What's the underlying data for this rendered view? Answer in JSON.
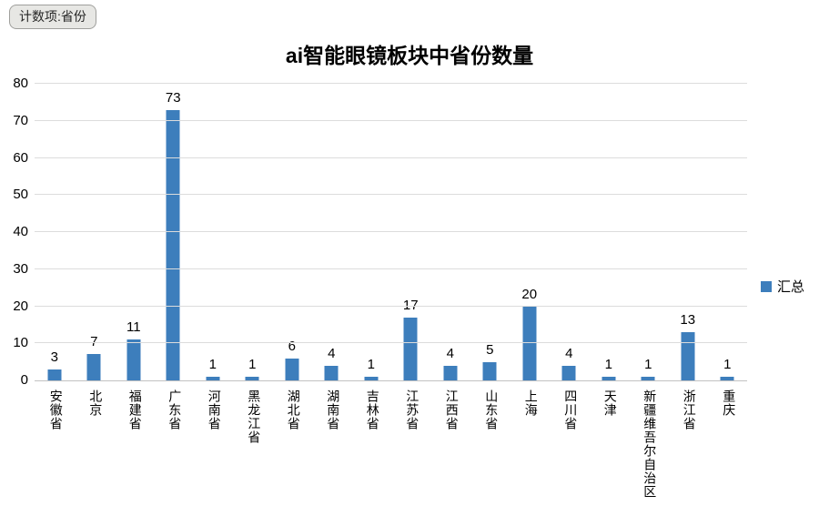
{
  "pivot_button": {
    "label": "计数项:省份"
  },
  "chart": {
    "title": "ai智能眼镜板块中省份数量",
    "legend": {
      "label": "汇总",
      "color": "#3d7ebc"
    }
  },
  "chart_data": {
    "type": "bar",
    "title": "ai智能眼镜板块中省份数量",
    "categories": [
      "安徽省",
      "北京",
      "福建省",
      "广东省",
      "河南省",
      "黑龙江省",
      "湖北省",
      "湖南省",
      "吉林省",
      "江苏省",
      "江西省",
      "山东省",
      "上海",
      "四川省",
      "天津",
      "新疆维吾尔自治区",
      "浙江省",
      "重庆"
    ],
    "series": [
      {
        "name": "汇总",
        "values": [
          3,
          7,
          11,
          73,
          1,
          1,
          6,
          4,
          1,
          17,
          4,
          5,
          20,
          4,
          1,
          1,
          13,
          1
        ]
      }
    ],
    "xlabel": "",
    "ylabel": "",
    "ylim": [
      0,
      80
    ],
    "ytick_interval": 10,
    "grid": true,
    "data_labels": true,
    "legend_position": "right",
    "bar_color": "#3d7ebc",
    "gridline_color": "#dcdcdc"
  }
}
